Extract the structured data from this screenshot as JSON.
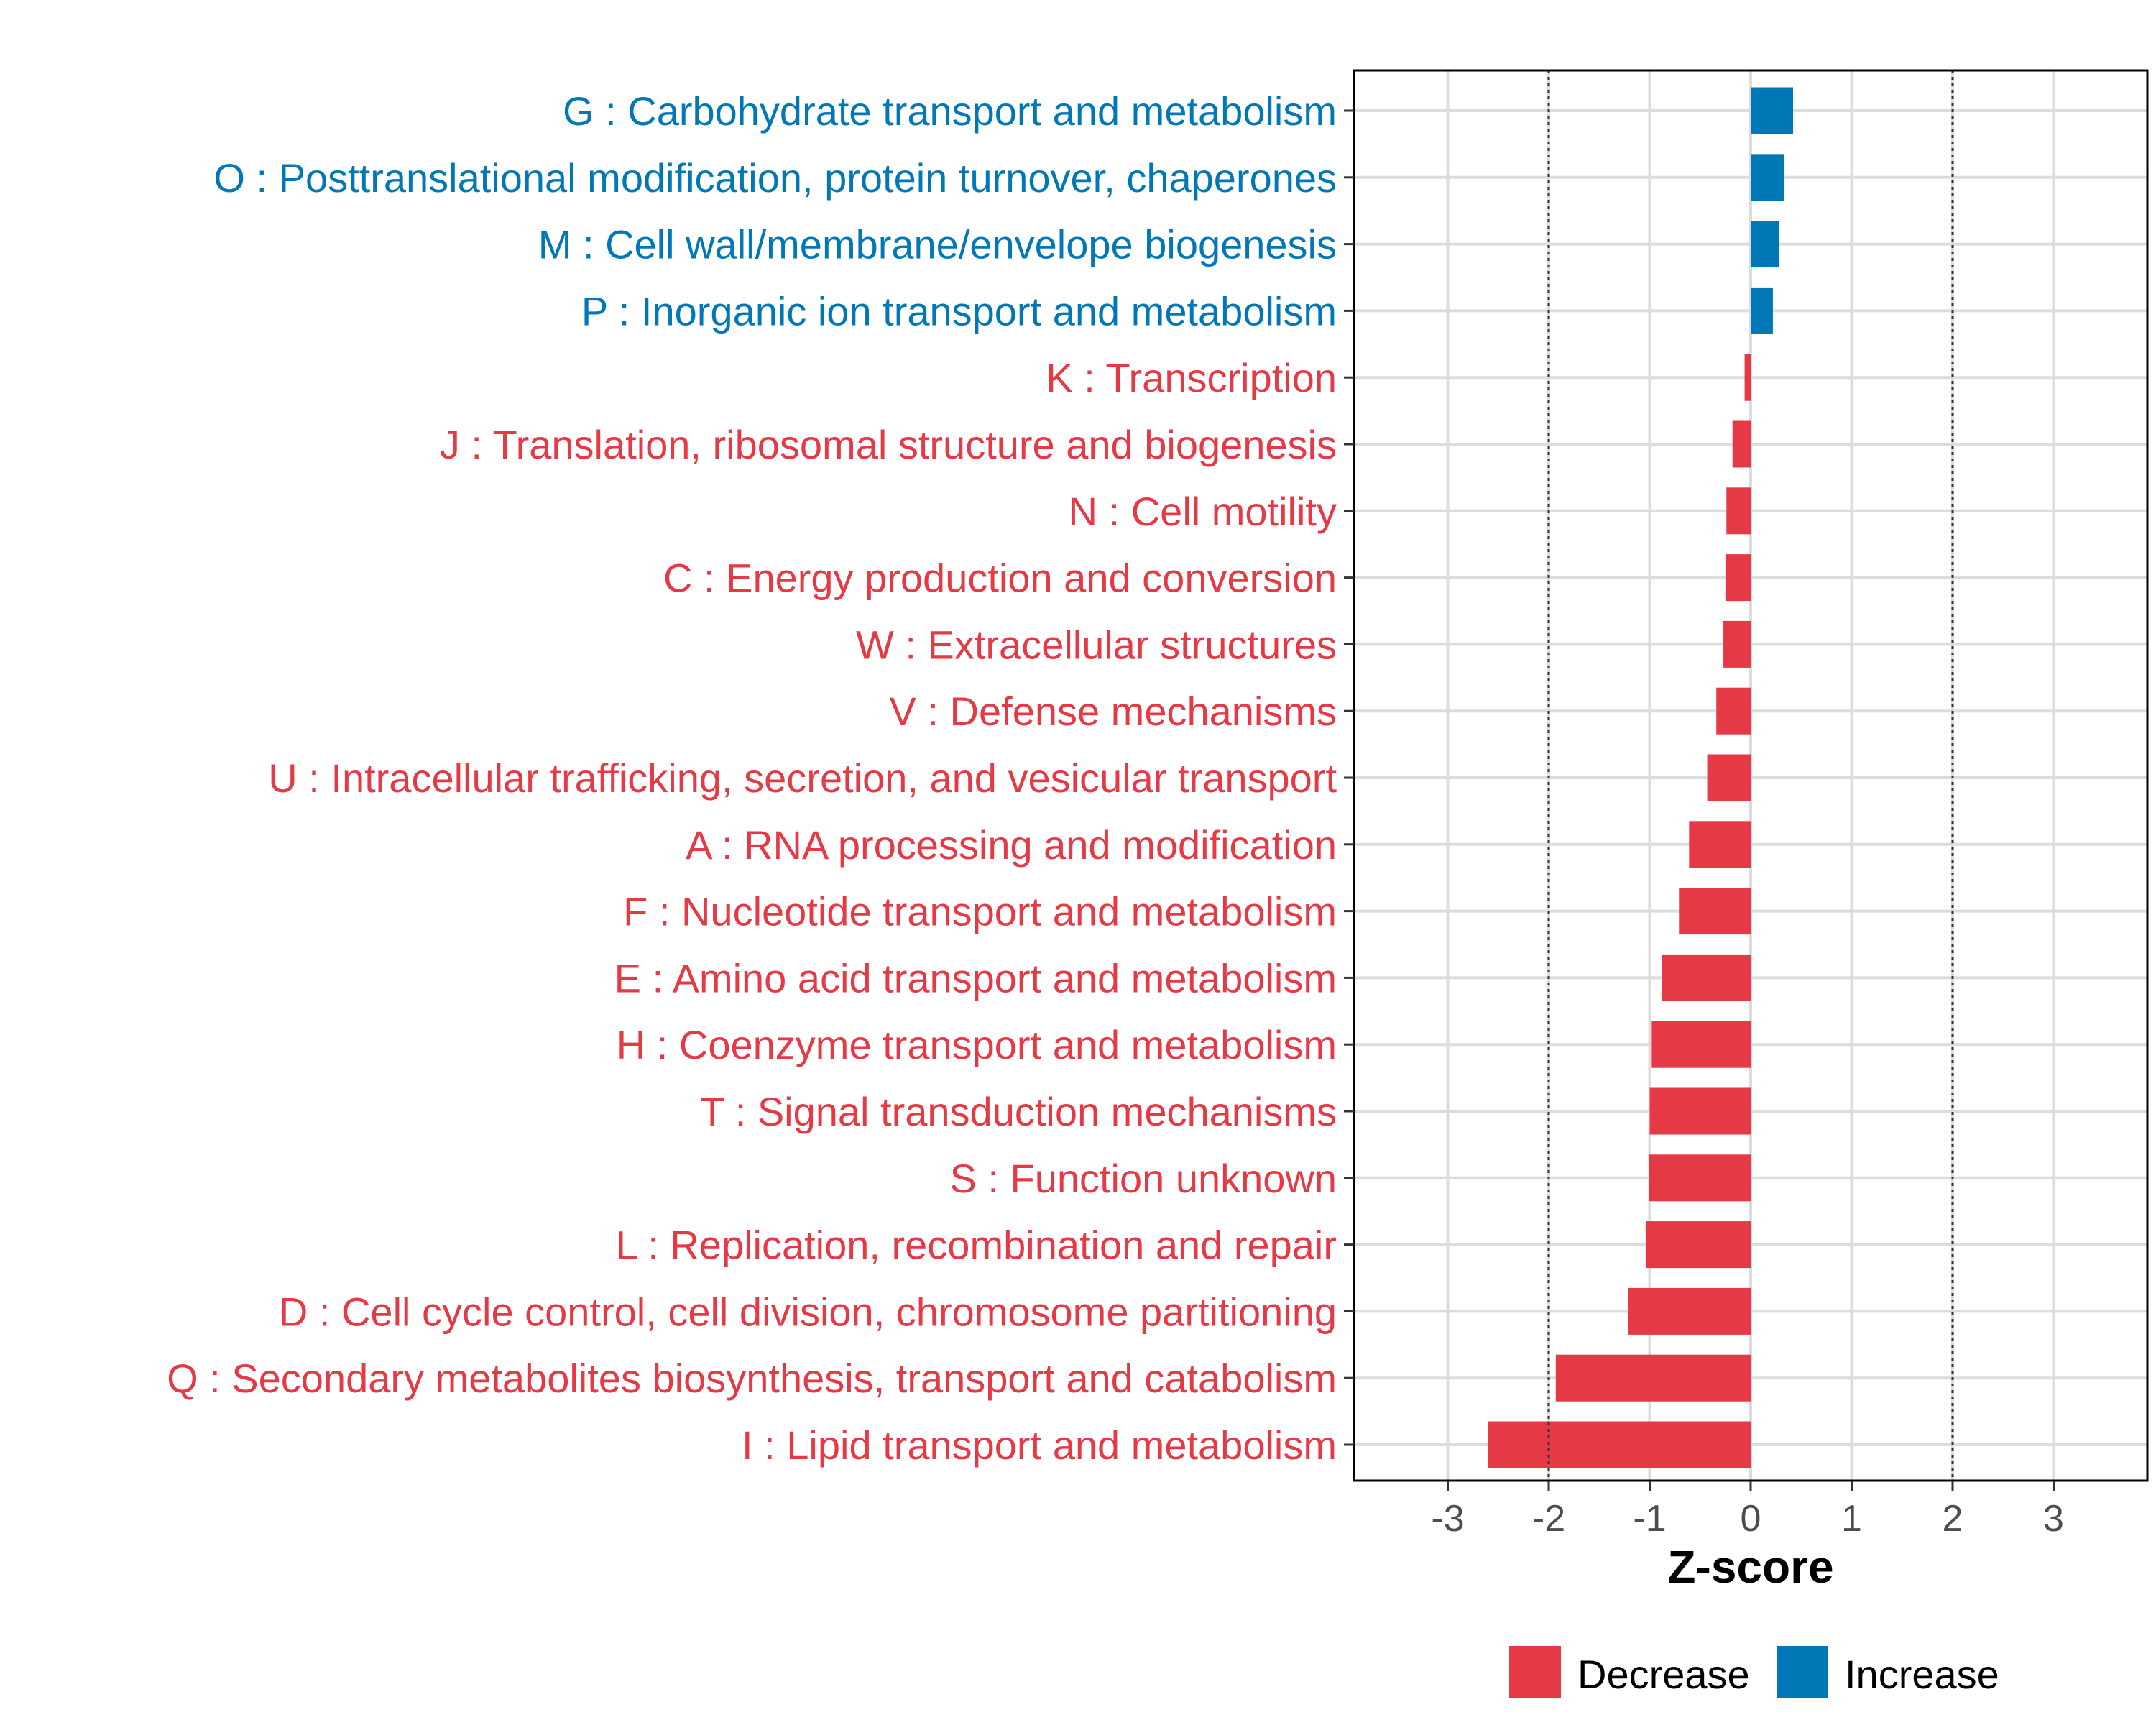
{
  "chart_data": {
    "type": "bar",
    "orientation": "horizontal",
    "title": "",
    "xlabel": "Z-score",
    "ylabel": "",
    "xlim": [
      -3.9,
      3.9
    ],
    "xticks": [
      -3,
      -2,
      -1,
      0,
      1,
      2,
      3
    ],
    "xtick_labels": [
      "-3",
      "-2",
      "-1",
      "0",
      "1",
      "2",
      "3"
    ],
    "reference_lines": [
      -2,
      2
    ],
    "grid": true,
    "colors": {
      "Decrease": "#E63946",
      "Increase": "#0077B6"
    },
    "categories": [
      "G : Carbohydrate transport and metabolism",
      "O : Posttranslational modification, protein turnover, chaperones",
      "M : Cell wall/membrane/envelope biogenesis",
      "P : Inorganic ion transport and metabolism",
      "K : Transcription",
      "J : Translation, ribosomal structure and biogenesis",
      "N : Cell motility",
      "C : Energy production and conversion",
      "W : Extracellular structures",
      "V : Defense mechanisms",
      "U : Intracellular trafficking, secretion, and vesicular transport",
      "A : RNA processing and modification",
      "F : Nucleotide transport and metabolism",
      "E : Amino acid transport and metabolism",
      "H : Coenzyme transport and metabolism",
      "T : Signal transduction mechanisms",
      "S : Function unknown",
      "L : Replication, recombination and repair",
      "D : Cell cycle control, cell division, chromosome partitioning",
      "Q : Secondary metabolites biosynthesis, transport and catabolism",
      "I : Lipid transport and metabolism"
    ],
    "values": [
      0.42,
      0.33,
      0.28,
      0.22,
      -0.06,
      -0.18,
      -0.24,
      -0.25,
      -0.27,
      -0.34,
      -0.43,
      -0.61,
      -0.71,
      -0.88,
      -0.98,
      -1.0,
      -1.01,
      -1.04,
      -1.21,
      -1.93,
      -2.6
    ],
    "groups": [
      "Increase",
      "Increase",
      "Increase",
      "Increase",
      "Decrease",
      "Decrease",
      "Decrease",
      "Decrease",
      "Decrease",
      "Decrease",
      "Decrease",
      "Decrease",
      "Decrease",
      "Decrease",
      "Decrease",
      "Decrease",
      "Decrease",
      "Decrease",
      "Decrease",
      "Decrease",
      "Decrease"
    ],
    "legend": {
      "position": "bottom",
      "entries": [
        {
          "label": "Decrease",
          "color": "#E63946"
        },
        {
          "label": "Increase",
          "color": "#0077B6"
        }
      ]
    }
  }
}
